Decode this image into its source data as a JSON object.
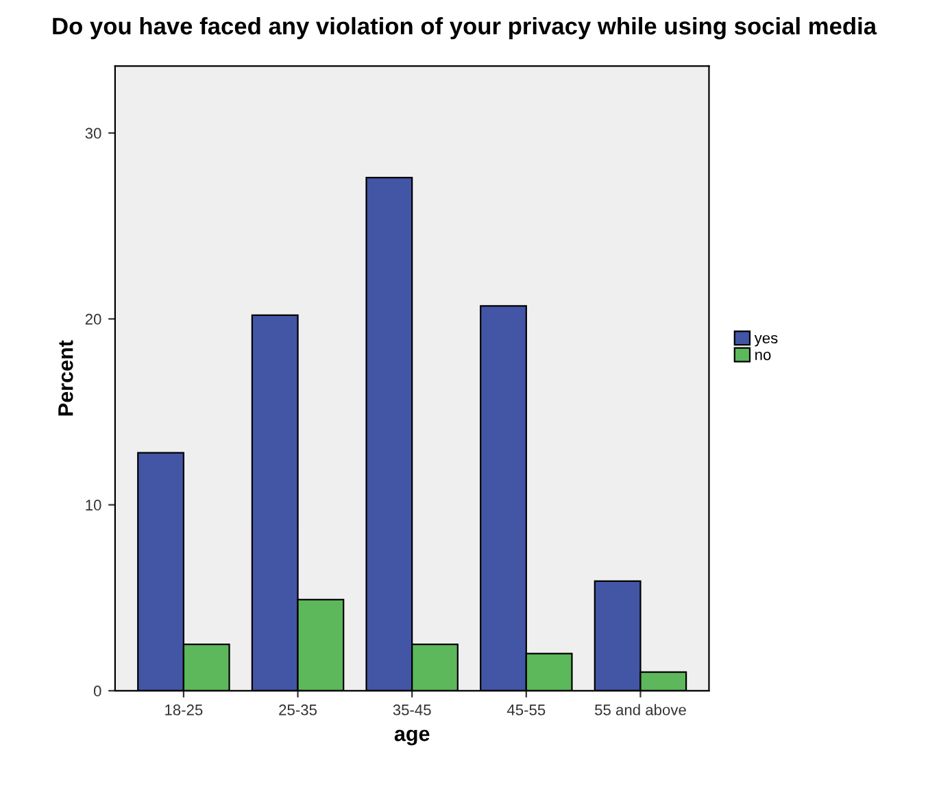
{
  "chart_data": {
    "type": "bar",
    "title": "Do you have faced any violation of your privacy while using social media",
    "xlabel": "age",
    "ylabel": "Percent",
    "categories": [
      "18-25",
      "25-35",
      "35-45",
      "45-55",
      "55 and above"
    ],
    "series": [
      {
        "name": "yes",
        "color": "#4355a5",
        "values": [
          12.8,
          20.2,
          27.6,
          20.7,
          5.9
        ]
      },
      {
        "name": "no",
        "color": "#5cb85a",
        "values": [
          2.5,
          4.9,
          2.5,
          2.0,
          1.0
        ]
      }
    ],
    "ylim": [
      0,
      33.6
    ],
    "yticks": [
      0,
      10,
      20,
      30
    ],
    "grid": false,
    "legend": "right"
  }
}
